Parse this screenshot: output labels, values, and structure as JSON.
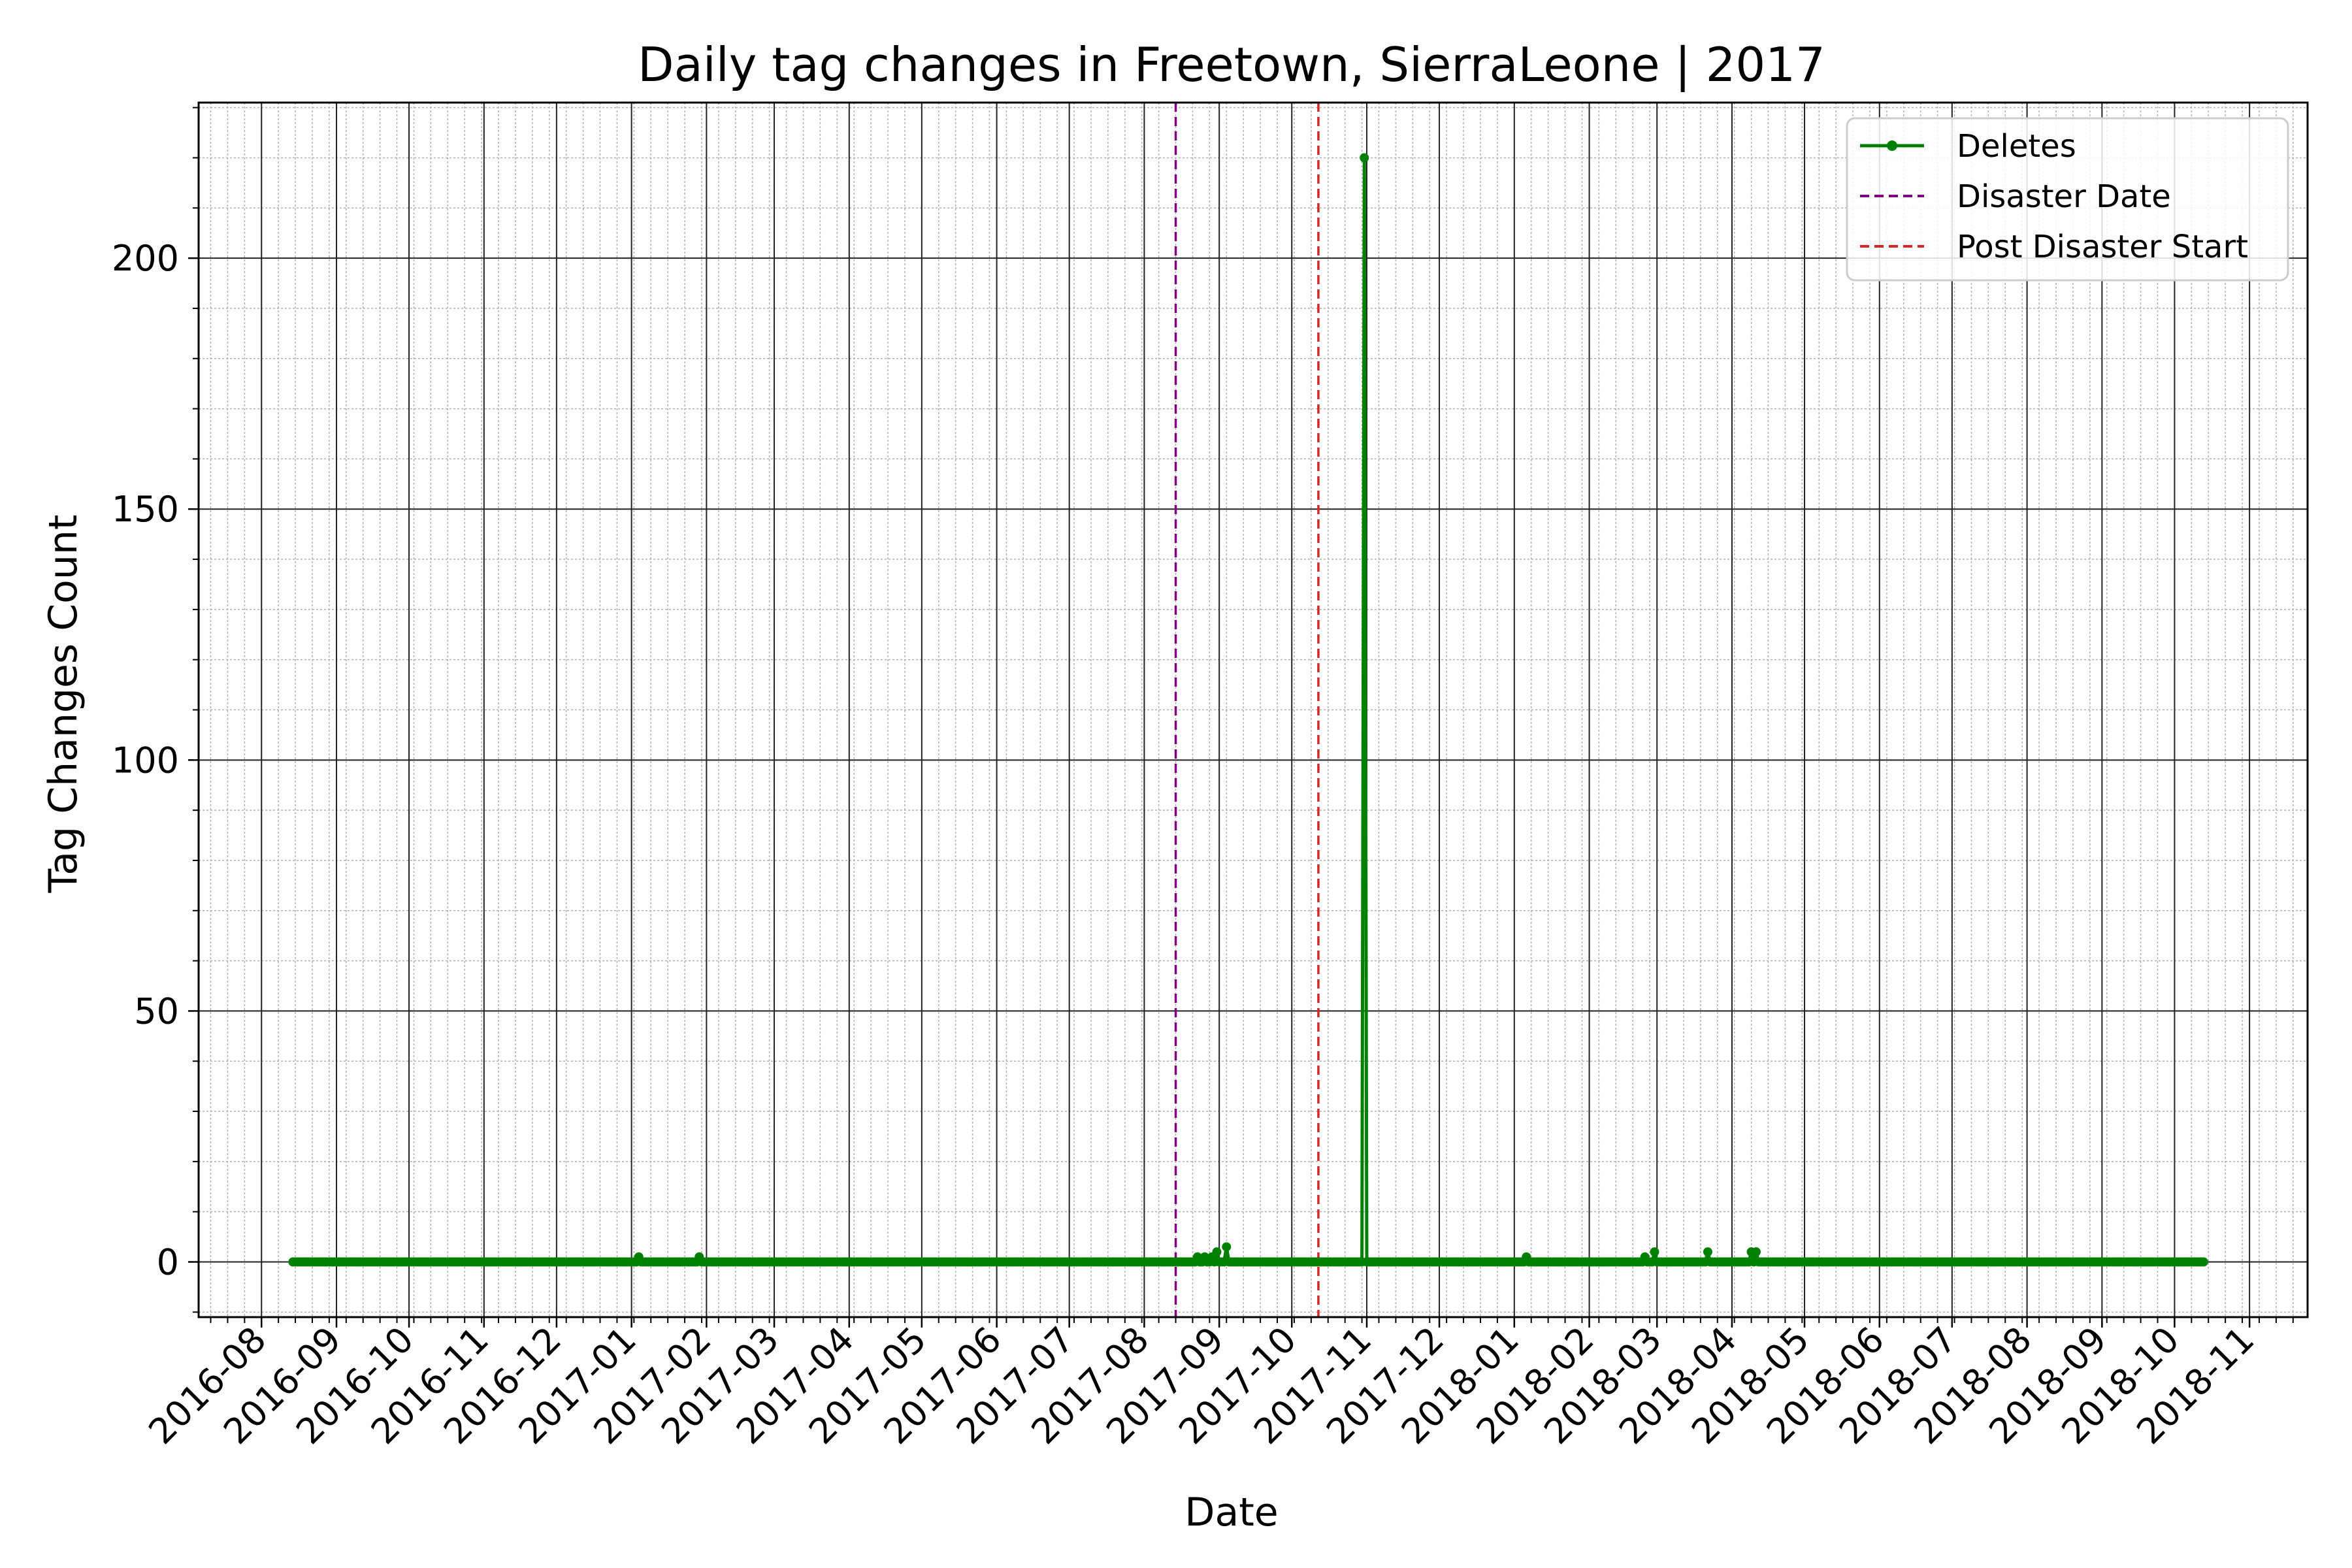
{
  "chart_data": {
    "type": "line",
    "title": "Daily tag changes in Freetown, SierraLeone | 2017",
    "xlabel": "Date",
    "ylabel": "Tag Changes Count",
    "x_ticks": [
      "2016-08",
      "2016-09",
      "2016-10",
      "2016-11",
      "2016-12",
      "2017-01",
      "2017-02",
      "2017-03",
      "2017-04",
      "2017-05",
      "2017-06",
      "2017-07",
      "2017-08",
      "2017-09",
      "2017-10",
      "2017-11",
      "2017-12",
      "2018-01",
      "2018-02",
      "2018-03",
      "2018-04",
      "2018-05",
      "2018-06",
      "2018-07",
      "2018-08",
      "2018-09",
      "2018-10",
      "2018-11"
    ],
    "y_ticks": [
      0,
      50,
      100,
      150,
      200
    ],
    "xlim": [
      "2016-07-06",
      "2018-11-25"
    ],
    "ylim": [
      -11,
      231
    ],
    "grid": true,
    "legend_position": "top-right",
    "series": [
      {
        "name": "Deletes",
        "color": "#008000",
        "marker": "circle",
        "start": "2016-08-14",
        "end": "2018-10-13",
        "baseline": 0,
        "points": [
          {
            "x": "2017-01-04",
            "y": 1
          },
          {
            "x": "2017-01-29",
            "y": 1
          },
          {
            "x": "2017-08-23",
            "y": 1
          },
          {
            "x": "2017-08-26",
            "y": 1
          },
          {
            "x": "2017-08-29",
            "y": 1
          },
          {
            "x": "2017-08-31",
            "y": 2
          },
          {
            "x": "2017-09-04",
            "y": 3
          },
          {
            "x": "2017-10-31",
            "y": 220
          },
          {
            "x": "2018-01-06",
            "y": 1
          },
          {
            "x": "2018-02-24",
            "y": 1
          },
          {
            "x": "2018-02-28",
            "y": 2
          },
          {
            "x": "2018-03-22",
            "y": 2
          },
          {
            "x": "2018-04-09",
            "y": 2
          },
          {
            "x": "2018-04-11",
            "y": 2
          }
        ]
      }
    ],
    "reference_lines": [
      {
        "name": "Disaster Date",
        "x": "2017-08-14",
        "color": "#800080",
        "style": "dashed"
      },
      {
        "name": "Post Disaster Start",
        "x": "2017-10-12",
        "color": "#d62728",
        "style": "dashed"
      }
    ]
  }
}
